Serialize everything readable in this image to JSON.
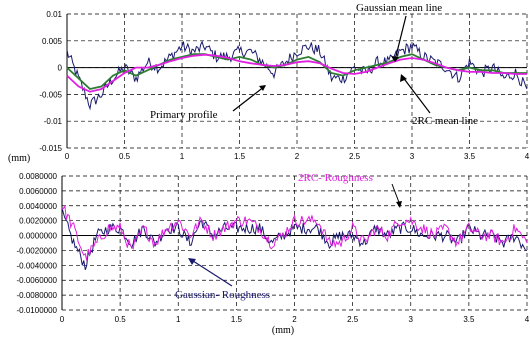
{
  "chart_data": [
    {
      "type": "line",
      "xlim": [
        0,
        4
      ],
      "ylim": [
        -0.015,
        0.01
      ],
      "x_ticks": [
        "0",
        "0.5",
        "1",
        "1.5",
        "2",
        "2.5",
        "3",
        "3.5",
        "4"
      ],
      "y_ticks": [
        "0.01",
        "0.005",
        "0",
        "-0.005",
        "-0.01",
        "-0.015"
      ],
      "xlabel": "(mm)",
      "grid": "dashed",
      "series": [
        {
          "name": "Primary profile",
          "color": "#1a1a6e",
          "noisy": true,
          "x": [
            0,
            0.1,
            0.2,
            0.3,
            0.4,
            0.5,
            0.6,
            0.7,
            0.8,
            0.9,
            1.0,
            1.1,
            1.2,
            1.3,
            1.4,
            1.5,
            1.6,
            1.7,
            1.8,
            1.9,
            2.0,
            2.1,
            2.2,
            2.3,
            2.4,
            2.5,
            2.6,
            2.7,
            2.8,
            2.9,
            3.0,
            3.1,
            3.2,
            3.3,
            3.4,
            3.5,
            3.6,
            3.7,
            3.8,
            3.9,
            4.0
          ],
          "y": [
            0.003,
            -0.002,
            -0.007,
            -0.005,
            -0.002,
            0.0,
            -0.002,
            0.001,
            0.0,
            0.002,
            0.004,
            0.003,
            0.004,
            0.002,
            0.002,
            0.003,
            0.003,
            0.001,
            -0.001,
            0.001,
            0.003,
            0.004,
            0.003,
            -0.002,
            -0.002,
            0.0,
            -0.001,
            0.001,
            0.001,
            0.003,
            0.004,
            0.002,
            0.001,
            0.0,
            -0.002,
            0.001,
            -0.001,
            0.0,
            -0.002,
            -0.001,
            -0.004
          ]
        },
        {
          "name": "Gaussian mean line",
          "color": "#2e7d32",
          "x": [
            0,
            0.1,
            0.2,
            0.3,
            0.4,
            0.5,
            0.6,
            0.7,
            0.8,
            0.9,
            1.0,
            1.1,
            1.2,
            1.3,
            1.4,
            1.5,
            1.6,
            1.7,
            1.8,
            1.9,
            2.0,
            2.1,
            2.2,
            2.3,
            2.4,
            2.5,
            2.6,
            2.7,
            2.8,
            2.9,
            3.0,
            3.1,
            3.2,
            3.3,
            3.4,
            3.5,
            3.6,
            3.7,
            3.8,
            3.9,
            4.0
          ],
          "y": [
            0.0,
            -0.002,
            -0.004,
            -0.0035,
            -0.0015,
            -0.0005,
            -0.0015,
            -0.0005,
            0.0005,
            0.0015,
            0.002,
            0.0025,
            0.0025,
            0.002,
            0.0015,
            0.002,
            0.0015,
            0.0005,
            0.0,
            0.0005,
            0.0015,
            0.002,
            0.001,
            -0.001,
            -0.0015,
            -0.0005,
            0.0,
            0.0005,
            0.001,
            0.002,
            0.0025,
            0.0015,
            0.0005,
            0.0,
            -0.0005,
            0.0,
            -0.0005,
            -0.0005,
            -0.001,
            -0.001,
            -0.001
          ]
        },
        {
          "name": "2RC mean line",
          "color": "#e020e0",
          "x": [
            0,
            0.1,
            0.2,
            0.3,
            0.4,
            0.5,
            0.6,
            0.7,
            0.8,
            0.9,
            1.0,
            1.1,
            1.2,
            1.3,
            1.4,
            1.5,
            1.6,
            1.7,
            1.8,
            1.9,
            2.0,
            2.1,
            2.2,
            2.3,
            2.4,
            2.5,
            2.6,
            2.7,
            2.8,
            2.9,
            3.0,
            3.1,
            3.2,
            3.3,
            3.4,
            3.5,
            3.6,
            3.7,
            3.8,
            3.9,
            4.0
          ],
          "y": [
            -0.0015,
            -0.0035,
            -0.0045,
            -0.004,
            -0.0025,
            -0.001,
            0.0,
            0.0,
            0.0005,
            0.0012,
            0.0018,
            0.0022,
            0.0024,
            0.0022,
            0.0018,
            0.0012,
            0.0008,
            0.0005,
            0.0003,
            0.0005,
            0.001,
            0.0012,
            0.0008,
            -0.0002,
            -0.001,
            -0.0012,
            -0.0008,
            0.0,
            0.0008,
            0.0015,
            0.0018,
            0.0015,
            0.0008,
            0.0,
            -0.0005,
            -0.0008,
            -0.0008,
            -0.001,
            -0.001,
            -0.0012,
            -0.0012
          ]
        }
      ],
      "annotations": [
        "Gaussian mean line",
        "Primary profile",
        "2RC mean line"
      ]
    },
    {
      "type": "line",
      "xlim": [
        0,
        4
      ],
      "ylim": [
        -0.01,
        0.008
      ],
      "x_ticks": [
        "0",
        "0.5",
        "1",
        "1.5",
        "2",
        "2.5",
        "3",
        "3.5",
        "4"
      ],
      "y_ticks": [
        "0.0080000",
        "0.0060000",
        "0.0040000",
        "0.0020000",
        "0.0000000",
        "-0.0020000",
        "-0.0040000",
        "-0.0060000",
        "-0.0080000",
        "-0.0100000"
      ],
      "xlabel": "(mm)",
      "grid": "dashed",
      "series": [
        {
          "name": "Gaussian- Roughness",
          "color": "#1a1a6e",
          "noisy": true,
          "x": [
            0,
            0.1,
            0.2,
            0.3,
            0.4,
            0.5,
            0.6,
            0.7,
            0.8,
            0.9,
            1.0,
            1.1,
            1.2,
            1.3,
            1.4,
            1.5,
            1.6,
            1.7,
            1.8,
            1.9,
            2.0,
            2.1,
            2.2,
            2.3,
            2.4,
            2.5,
            2.6,
            2.7,
            2.8,
            2.9,
            3.0,
            3.1,
            3.2,
            3.3,
            3.4,
            3.5,
            3.6,
            3.7,
            3.8,
            3.9,
            4.0
          ],
          "y": [
            0.003,
            -0.001,
            -0.004,
            0.0,
            0.001,
            0.001,
            -0.001,
            0.001,
            -0.001,
            0.001,
            0.001,
            -0.001,
            0.002,
            0.0,
            0.001,
            0.001,
            0.001,
            0.001,
            -0.001,
            0.0,
            0.001,
            0.001,
            0.001,
            -0.001,
            0.0,
            0.0,
            -0.001,
            0.001,
            0.0,
            0.001,
            0.001,
            0.0,
            0.0,
            0.0,
            -0.001,
            0.001,
            0.0,
            0.0,
            -0.001,
            0.0,
            -0.002
          ]
        },
        {
          "name": "2RC- Roughness",
          "color": "#e020e0",
          "noisy": true,
          "x": [
            0,
            0.1,
            0.2,
            0.3,
            0.4,
            0.5,
            0.6,
            0.7,
            0.8,
            0.9,
            1.0,
            1.1,
            1.2,
            1.3,
            1.4,
            1.5,
            1.6,
            1.7,
            1.8,
            1.9,
            2.0,
            2.1,
            2.2,
            2.3,
            2.4,
            2.5,
            2.6,
            2.7,
            2.8,
            2.9,
            3.0,
            3.1,
            3.2,
            3.3,
            3.4,
            3.5,
            3.6,
            3.7,
            3.8,
            3.9,
            4.0
          ],
          "y": [
            0.004,
            0.001,
            -0.003,
            -0.001,
            0.001,
            0.001,
            -0.002,
            0.001,
            -0.001,
            0.001,
            0.002,
            0.0,
            0.002,
            0.0,
            0.001,
            0.002,
            0.002,
            0.001,
            -0.001,
            0.0,
            0.002,
            0.002,
            0.002,
            -0.001,
            -0.001,
            0.001,
            -0.001,
            0.001,
            0.0,
            0.002,
            0.002,
            0.001,
            0.0,
            0.001,
            -0.001,
            0.001,
            0.0,
            0.0,
            -0.001,
            0.001,
            -0.001
          ]
        }
      ],
      "annotations": [
        "2RC- Roughness",
        "Gaussian- Roughness"
      ]
    }
  ]
}
